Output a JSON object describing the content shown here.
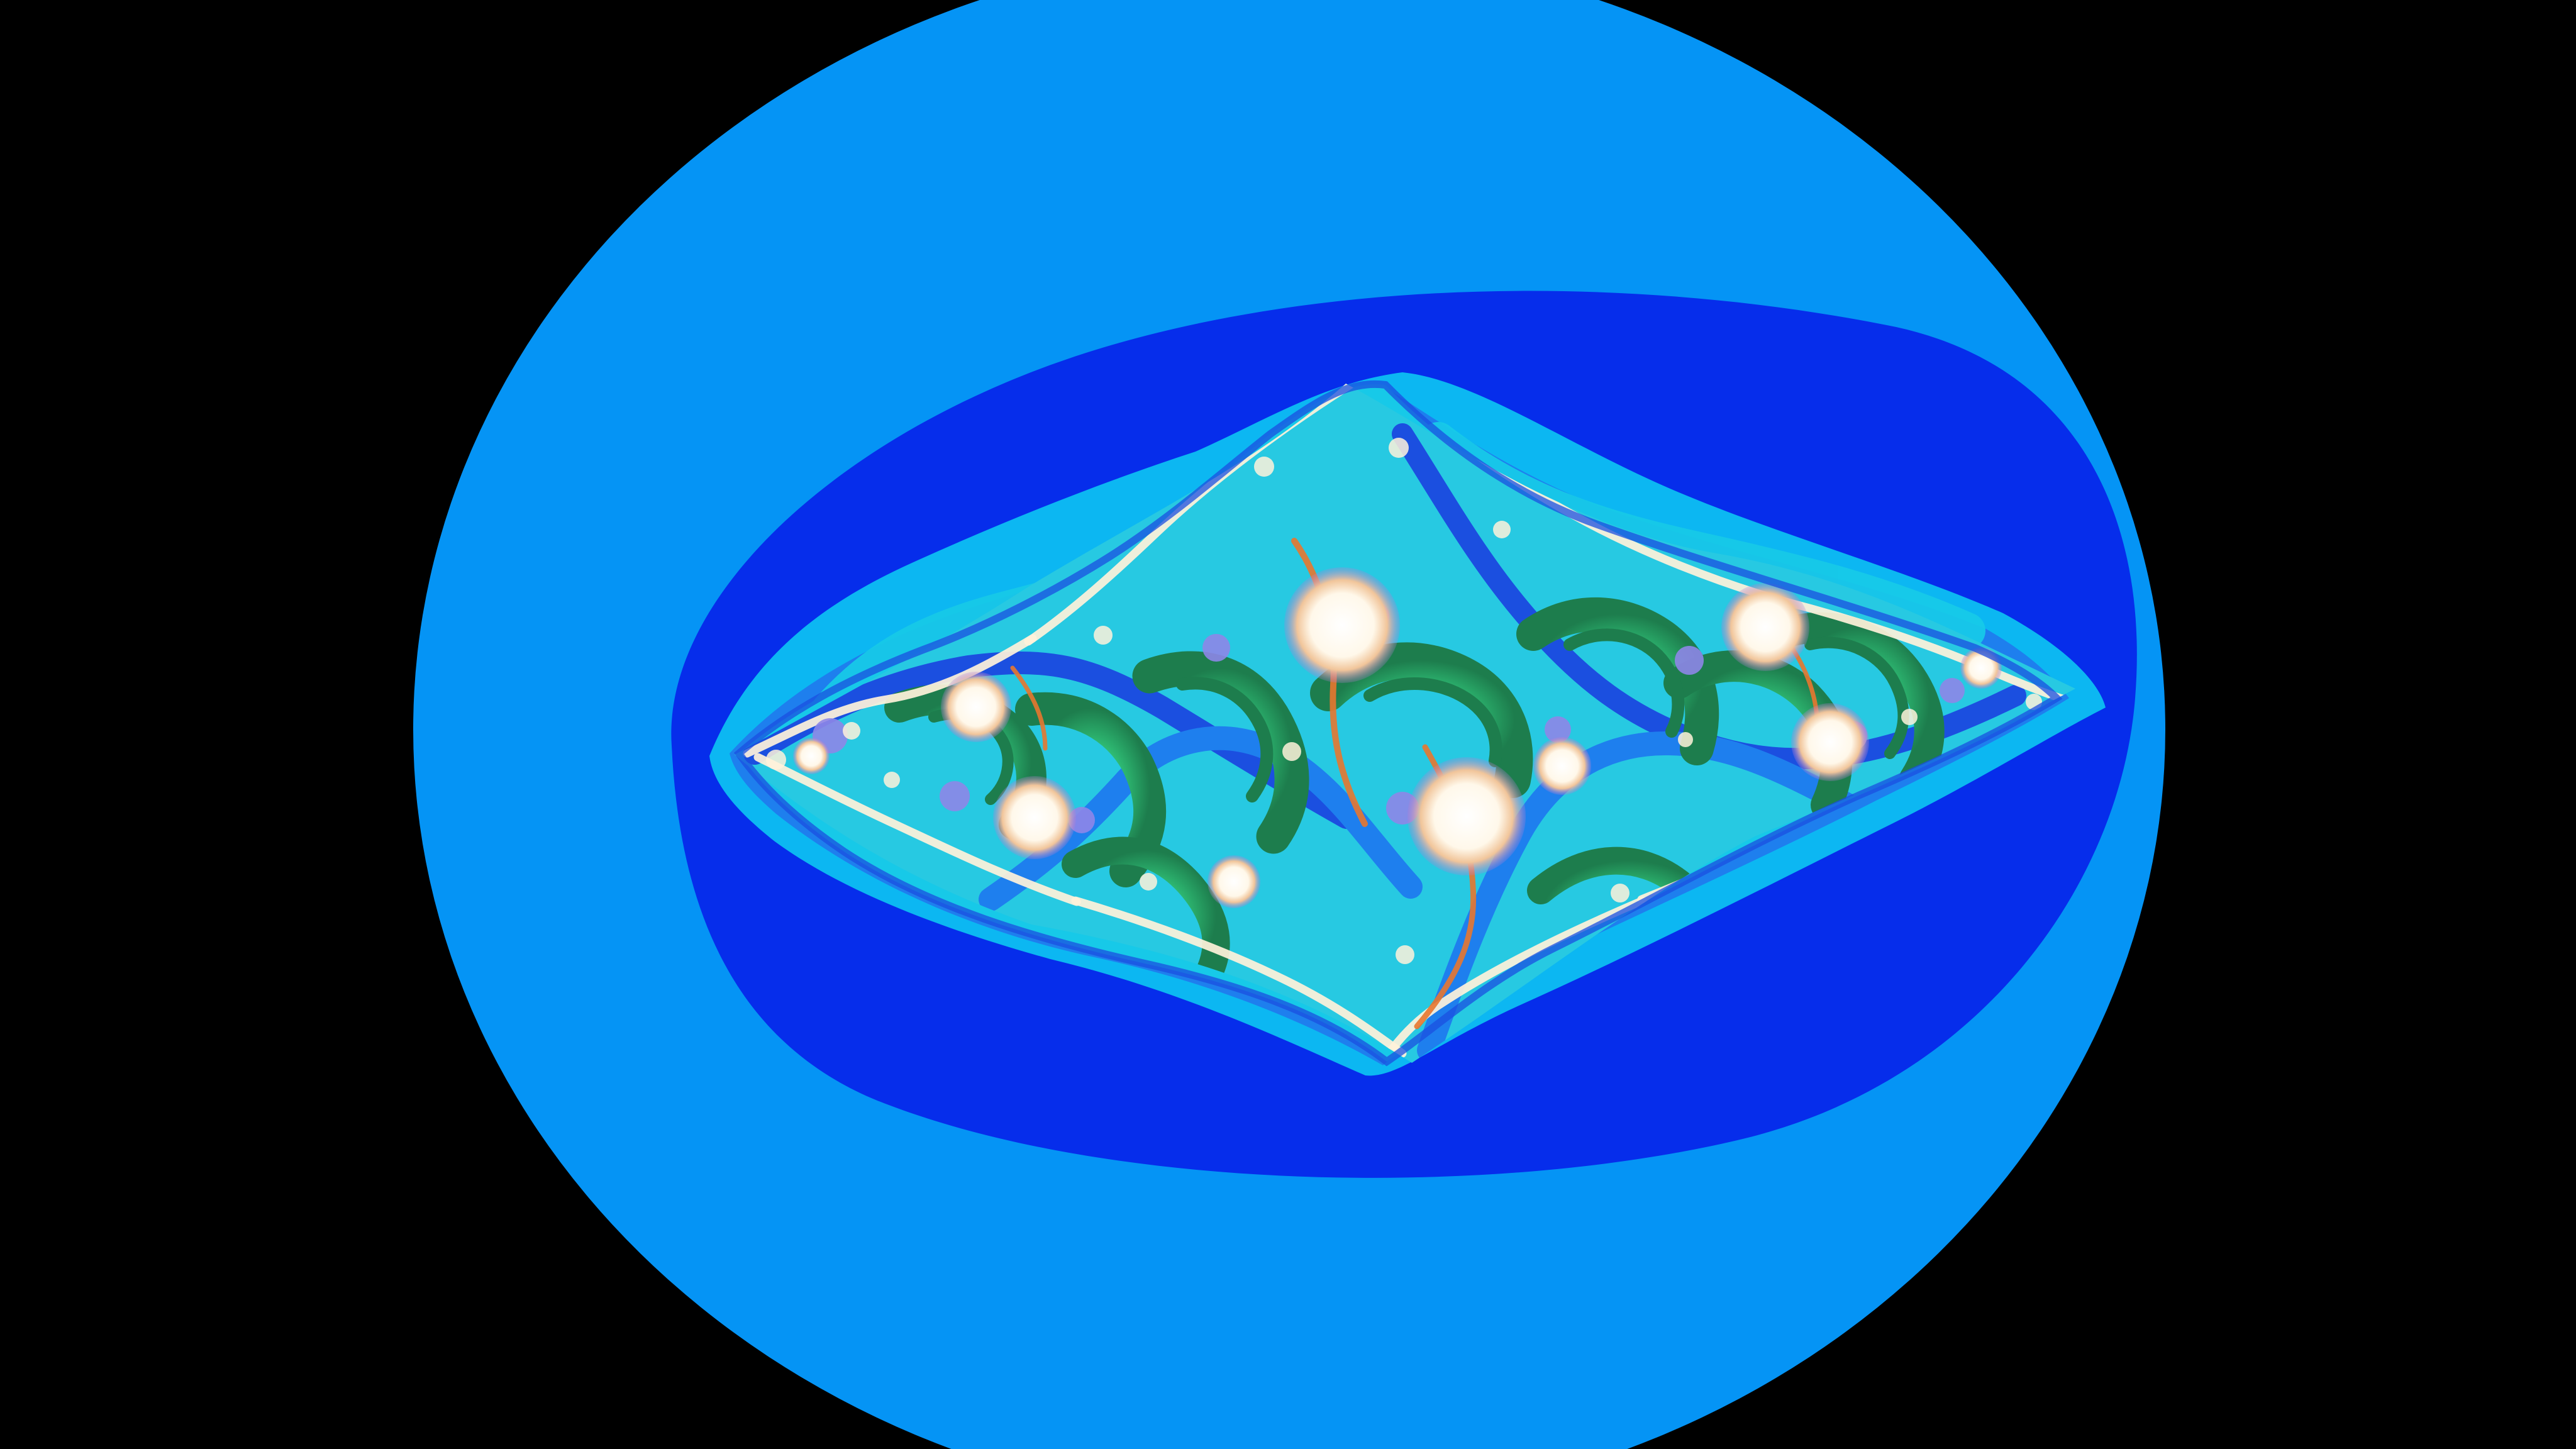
{
  "image": {
    "subject": "julia-set-fractal",
    "colors": {
      "background": "#000000",
      "outer_disc": "#0594F5",
      "band_1": "#062DEB",
      "band_2": "#0CB7F2",
      "band_3": "#1E7FEE",
      "band_4": "#17C9E8",
      "band_5": "#1B4FE0",
      "inner_cyan": "#22D9D6",
      "green": "#2FBE75",
      "dark_green": "#1D7D4D",
      "violet": "#8E86E8",
      "orange": "#E8772F",
      "white": "#FFFFFF",
      "cream": "#FFF2DA"
    }
  }
}
